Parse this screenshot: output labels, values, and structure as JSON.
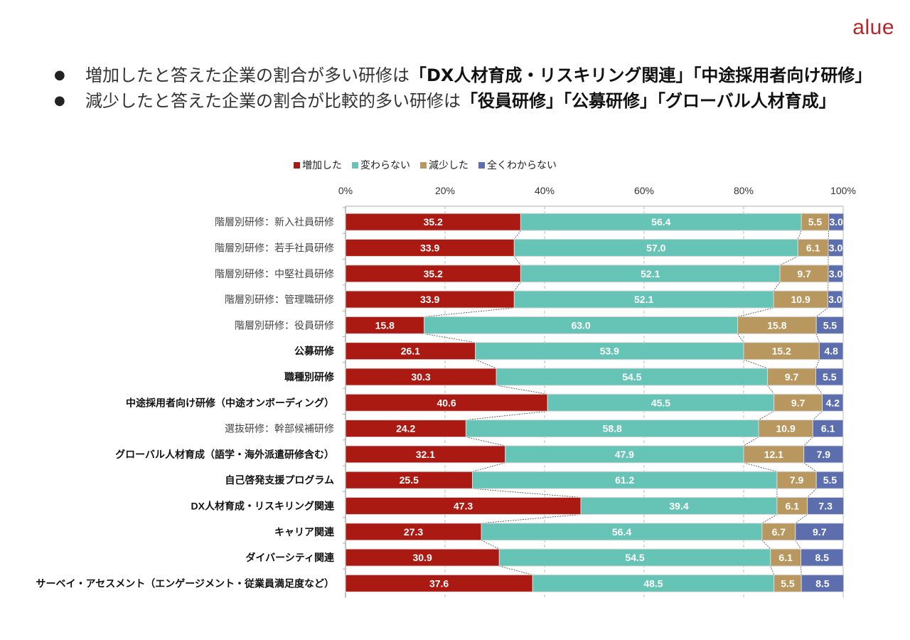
{
  "brand": {
    "logo_text": "alue",
    "color": "#b4272a"
  },
  "bullets": [
    {
      "parts": [
        {
          "text": "増加したと答えた企業の割合が多い研修は",
          "bold": false
        },
        {
          "text": "「DX人材育成・リスキリング関連」「中途採用者向け研修」",
          "bold": true
        }
      ]
    },
    {
      "parts": [
        {
          "text": "減少したと答えた企業の割合が比較的多い研修は",
          "bold": false
        },
        {
          "text": "「役員研修」「公募研修」「グローバル人材育成」",
          "bold": true
        }
      ]
    }
  ],
  "chart_data": {
    "type": "bar",
    "orientation": "horizontal",
    "stacked": "percent",
    "title": "",
    "xlabel": "",
    "ylabel": "",
    "xlim": [
      0,
      100
    ],
    "x_ticks": [
      "0%",
      "20%",
      "40%",
      "60%",
      "80%",
      "100%"
    ],
    "x_axis_position": "top",
    "grid": true,
    "legend_position": "top",
    "categories": [
      {
        "label": "階層別研修：新入社員研修",
        "bold": false
      },
      {
        "label": "階層別研修：若手社員研修",
        "bold": false
      },
      {
        "label": "階層別研修：中堅社員研修",
        "bold": false
      },
      {
        "label": "階層別研修：管理職研修",
        "bold": false
      },
      {
        "label": "階層別研修：役員研修",
        "bold": false
      },
      {
        "label": "公募研修",
        "bold": true
      },
      {
        "label": "職種別研修",
        "bold": true
      },
      {
        "label": "中途採用者向け研修（中途オンボーディング）",
        "bold": true
      },
      {
        "label": "選抜研修：幹部候補研修",
        "bold": false
      },
      {
        "label": "グローバル人材育成（語学・海外派遣研修含む）",
        "bold": true
      },
      {
        "label": "自己啓発支援プログラム",
        "bold": true
      },
      {
        "label": "DX人材育成・リスキリング関連",
        "bold": true
      },
      {
        "label": "キャリア関連",
        "bold": true
      },
      {
        "label": "ダイバーシティ関連",
        "bold": true
      },
      {
        "label": "サーベイ・アセスメント（エンゲージメント・従業員満足度など）",
        "bold": true
      }
    ],
    "series": [
      {
        "name": "増加した",
        "color": "#ab1a12",
        "values": [
          35.2,
          33.9,
          35.2,
          33.9,
          15.8,
          26.1,
          30.3,
          40.6,
          24.2,
          32.1,
          25.5,
          47.3,
          27.3,
          30.9,
          37.6
        ]
      },
      {
        "name": "変わらない",
        "color": "#66c4b6",
        "values": [
          56.4,
          57.0,
          52.1,
          52.1,
          63.0,
          53.9,
          54.5,
          45.5,
          58.8,
          47.9,
          61.2,
          39.4,
          56.4,
          54.5,
          48.5
        ]
      },
      {
        "name": "減少した",
        "color": "#b8985e",
        "values": [
          5.5,
          6.1,
          9.7,
          10.9,
          15.8,
          15.2,
          9.7,
          9.7,
          10.9,
          12.1,
          7.9,
          6.1,
          6.7,
          6.1,
          5.5
        ]
      },
      {
        "name": "全くわからない",
        "color": "#5d6eaf",
        "values": [
          3.0,
          3.0,
          3.0,
          3.0,
          5.5,
          4.8,
          5.5,
          4.2,
          6.1,
          7.9,
          5.5,
          7.3,
          9.7,
          8.5,
          8.5
        ]
      }
    ]
  }
}
